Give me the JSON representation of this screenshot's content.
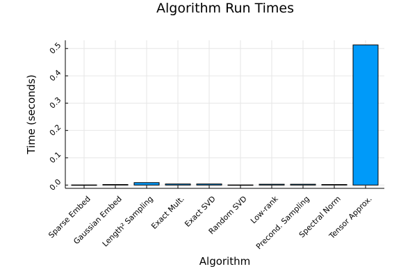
{
  "chart_data": {
    "type": "bar",
    "title": "Algorithm Run Times",
    "xlabel": "Algorithm",
    "ylabel": "Time (seconds)",
    "categories": [
      "Sparse Embed",
      "Gaussian Embed",
      "Length² Sampling",
      "Exact Mult.",
      "Exact SVD",
      "Random SVD",
      "Low-rank",
      "Precond. Sampling",
      "Spectral Norm",
      "Tensor Approx."
    ],
    "values": [
      0.0005,
      0.002,
      0.009,
      0.004,
      0.004,
      0.0005,
      0.003,
      0.003,
      0.002,
      0.513
    ],
    "ylim": [
      -0.012,
      0.53
    ],
    "yticks": [
      0.0,
      0.1,
      0.2,
      0.3,
      0.4,
      0.5
    ],
    "ytick_labels": [
      "0.0",
      "0.1",
      "0.2",
      "0.3",
      "0.4",
      "0.5"
    ],
    "grid": true,
    "legend": "none",
    "bar_color": "#009af9"
  }
}
